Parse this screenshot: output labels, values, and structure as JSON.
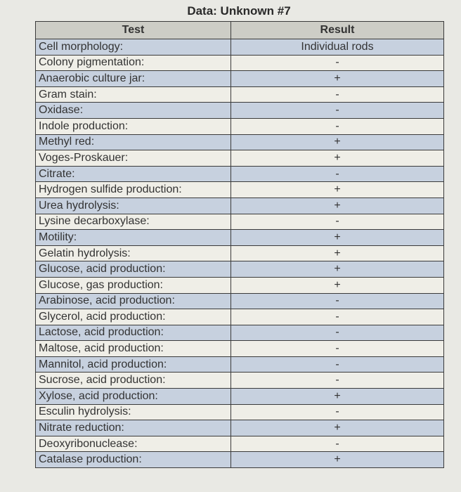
{
  "title": "Data: Unknown #7",
  "columns": [
    "Test",
    "Result"
  ],
  "rows": [
    {
      "test": "Cell morphology:",
      "result": "Individual rods"
    },
    {
      "test": "Colony pigmentation:",
      "result": "-"
    },
    {
      "test": "Anaerobic culture jar:",
      "result": "+"
    },
    {
      "test": "Gram stain:",
      "result": "-"
    },
    {
      "test": "Oxidase:",
      "result": "-"
    },
    {
      "test": "Indole production:",
      "result": "-"
    },
    {
      "test": "Methyl red:",
      "result": "+"
    },
    {
      "test": "Voges-Proskauer:",
      "result": "+"
    },
    {
      "test": "Citrate:",
      "result": "-"
    },
    {
      "test": "Hydrogen sulfide production:",
      "result": "+"
    },
    {
      "test": "Urea hydrolysis:",
      "result": "+"
    },
    {
      "test": "Lysine decarboxylase:",
      "result": "-"
    },
    {
      "test": "Motility:",
      "result": "+"
    },
    {
      "test": "Gelatin hydrolysis:",
      "result": "+"
    },
    {
      "test": "Glucose, acid production:",
      "result": "+"
    },
    {
      "test": "Glucose, gas production:",
      "result": "+"
    },
    {
      "test": "Arabinose, acid production:",
      "result": "-"
    },
    {
      "test": "Glycerol, acid production:",
      "result": "-"
    },
    {
      "test": "Lactose, acid production:",
      "result": "-"
    },
    {
      "test": "Maltose, acid production:",
      "result": "-"
    },
    {
      "test": "Mannitol, acid production:",
      "result": "-"
    },
    {
      "test": "Sucrose, acid production:",
      "result": "-"
    },
    {
      "test": "Xylose, acid production:",
      "result": "+"
    },
    {
      "test": "Esculin hydrolysis:",
      "result": "-"
    },
    {
      "test": "Nitrate reduction:",
      "result": "+"
    },
    {
      "test": "Deoxyribonuclease:",
      "result": "-"
    },
    {
      "test": "Catalase production:",
      "result": "+"
    }
  ],
  "colors": {
    "row_blue": "#c7d1df",
    "row_cream": "#efeee7",
    "header": "#cdcdc6"
  }
}
